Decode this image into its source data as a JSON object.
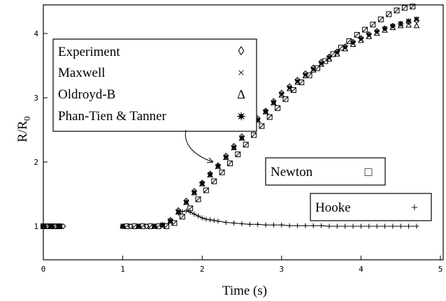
{
  "chart_data": {
    "type": "scatter",
    "xlabel": "Time (s)",
    "ylabel_main": "R/R",
    "ylabel_sub": "0",
    "xlim": [
      0,
      5
    ],
    "ylim": [
      0.6,
      4.5
    ],
    "x_ticks": [
      "0",
      "1",
      "2",
      "3",
      "4",
      "5"
    ],
    "y_ticks": [
      "1",
      "2",
      "3",
      "4"
    ],
    "grid": false,
    "legend_main": [
      {
        "label": "Experiment",
        "symbol": "◊"
      },
      {
        "label": "Maxwell",
        "symbol": "×"
      },
      {
        "label": "Oldroyd-B",
        "symbol": "Δ"
      },
      {
        "label": "Phan-Tien & Tanner",
        "symbol": "✷"
      }
    ],
    "legend_newton": {
      "label": "Newton",
      "symbol": "□"
    },
    "legend_hooke": {
      "label": "Hooke",
      "symbol": "+"
    },
    "series": [
      {
        "name": "Experiment",
        "marker": "diamond",
        "x": [
          0.0,
          0.05,
          0.1,
          0.15,
          0.2,
          0.25,
          1.0,
          1.1,
          1.2,
          1.3,
          1.4,
          1.5,
          1.6,
          1.7,
          1.8,
          1.9,
          2.0,
          2.1,
          2.2,
          2.3,
          2.4,
          2.5,
          2.6,
          2.7,
          2.8,
          2.9,
          3.0,
          3.1,
          3.2,
          3.3,
          3.4,
          3.5,
          3.6,
          3.7,
          3.8,
          3.9,
          4.0,
          4.1,
          4.2,
          4.3,
          4.4,
          4.5,
          4.6,
          4.7
        ],
        "y": [
          1.0,
          1.0,
          1.0,
          1.0,
          1.0,
          1.0,
          1.0,
          1.0,
          1.0,
          1.0,
          1.0,
          1.02,
          1.1,
          1.25,
          1.4,
          1.55,
          1.68,
          1.82,
          1.95,
          2.1,
          2.25,
          2.4,
          2.55,
          2.68,
          2.8,
          2.95,
          3.08,
          3.18,
          3.28,
          3.38,
          3.47,
          3.56,
          3.64,
          3.72,
          3.8,
          3.87,
          3.93,
          3.99,
          4.04,
          4.08,
          4.12,
          4.15,
          4.18,
          4.2
        ]
      },
      {
        "name": "Maxwell",
        "marker": "cross",
        "x": [
          0.0,
          0.1,
          0.2,
          1.0,
          1.2,
          1.4,
          1.5,
          1.6,
          1.7,
          1.8,
          1.9,
          2.0,
          2.1,
          2.2,
          2.3,
          2.4,
          2.5,
          2.6,
          2.7,
          2.8,
          2.9,
          3.0,
          3.1,
          3.2,
          3.3,
          3.4,
          3.5,
          3.6,
          3.7,
          3.8,
          3.9,
          4.0,
          4.1,
          4.2,
          4.3,
          4.4,
          4.5,
          4.6,
          4.7
        ],
        "y": [
          1.0,
          1.0,
          1.0,
          1.0,
          1.0,
          1.0,
          1.02,
          1.08,
          1.22,
          1.37,
          1.52,
          1.66,
          1.8,
          1.93,
          2.07,
          2.22,
          2.37,
          2.52,
          2.65,
          2.78,
          2.92,
          3.05,
          3.15,
          3.25,
          3.35,
          3.44,
          3.53,
          3.62,
          3.7,
          3.78,
          3.85,
          3.91,
          3.97,
          4.02,
          4.07,
          4.11,
          4.15,
          4.19,
          4.22
        ]
      },
      {
        "name": "Oldroyd-B",
        "marker": "triangle",
        "x": [
          0.0,
          0.1,
          0.2,
          1.0,
          1.2,
          1.4,
          1.5,
          1.6,
          1.7,
          1.8,
          1.9,
          2.0,
          2.1,
          2.2,
          2.3,
          2.4,
          2.5,
          2.6,
          2.7,
          2.8,
          2.9,
          3.0,
          3.1,
          3.2,
          3.3,
          3.4,
          3.5,
          3.6,
          3.7,
          3.8,
          3.9,
          4.0,
          4.1,
          4.2,
          4.3,
          4.4,
          4.5,
          4.6,
          4.7
        ],
        "y": [
          1.0,
          1.0,
          1.0,
          1.0,
          1.0,
          1.0,
          1.02,
          1.08,
          1.22,
          1.37,
          1.52,
          1.66,
          1.8,
          1.93,
          2.07,
          2.22,
          2.37,
          2.52,
          2.65,
          2.78,
          2.92,
          3.04,
          3.14,
          3.24,
          3.34,
          3.43,
          3.52,
          3.6,
          3.68,
          3.76,
          3.83,
          3.89,
          3.95,
          4.0,
          4.05,
          4.09,
          4.12,
          4.13,
          4.12
        ]
      },
      {
        "name": "Phan-Tien & Tanner",
        "marker": "star",
        "x": [
          0.0,
          0.1,
          0.2,
          1.0,
          1.2,
          1.4,
          1.5,
          1.6,
          1.7,
          1.8,
          1.9,
          2.0,
          2.1,
          2.2,
          2.3,
          2.4,
          2.5,
          2.6,
          2.7,
          2.8,
          2.9,
          3.0,
          3.1,
          3.2,
          3.3,
          3.4,
          3.5,
          3.6,
          3.7,
          3.8,
          3.9,
          4.0,
          4.1,
          4.2,
          4.3,
          4.4,
          4.5,
          4.6,
          4.7
        ],
        "y": [
          1.0,
          1.0,
          1.0,
          1.0,
          1.0,
          1.0,
          1.02,
          1.08,
          1.23,
          1.38,
          1.53,
          1.67,
          1.81,
          1.94,
          2.08,
          2.23,
          2.38,
          2.53,
          2.66,
          2.79,
          2.93,
          3.06,
          3.16,
          3.26,
          3.36,
          3.45,
          3.54,
          3.63,
          3.71,
          3.79,
          3.86,
          3.92,
          3.98,
          4.03,
          4.08,
          4.12,
          4.16,
          4.2,
          4.23
        ]
      },
      {
        "name": "Newton",
        "marker": "square",
        "x": [
          0.0,
          0.05,
          0.1,
          0.15,
          0.2,
          1.05,
          1.15,
          1.25,
          1.35,
          1.45,
          1.55,
          1.65,
          1.75,
          1.85,
          1.95,
          2.05,
          2.15,
          2.25,
          2.35,
          2.45,
          2.55,
          2.65,
          2.75,
          2.85,
          2.95,
          3.05,
          3.15,
          3.25,
          3.35,
          3.45,
          3.55,
          3.65,
          3.75,
          3.85,
          3.95,
          4.05,
          4.15,
          4.25,
          4.35,
          4.45,
          4.55,
          4.65
        ],
        "y": [
          1.0,
          1.0,
          1.0,
          1.0,
          1.0,
          1.0,
          1.0,
          1.0,
          1.0,
          1.0,
          1.0,
          1.05,
          1.15,
          1.28,
          1.42,
          1.56,
          1.7,
          1.84,
          1.98,
          2.12,
          2.27,
          2.42,
          2.56,
          2.7,
          2.84,
          2.98,
          3.12,
          3.24,
          3.35,
          3.46,
          3.57,
          3.68,
          3.78,
          3.88,
          3.98,
          4.06,
          4.14,
          4.22,
          4.3,
          4.36,
          4.4,
          4.42
        ]
      },
      {
        "name": "Hooke",
        "marker": "plus",
        "x": [
          1.7,
          1.75,
          1.8,
          1.85,
          1.9,
          1.95,
          2.0,
          2.05,
          2.1,
          2.15,
          2.2,
          2.3,
          2.4,
          2.5,
          2.6,
          2.7,
          2.8,
          2.9,
          3.0,
          3.1,
          3.2,
          3.3,
          3.4,
          3.5,
          3.6,
          3.7,
          3.8,
          3.9,
          4.0,
          4.1,
          4.2,
          4.3,
          4.4,
          4.5,
          4.6,
          4.7
        ],
        "y": [
          1.2,
          1.23,
          1.24,
          1.22,
          1.19,
          1.16,
          1.13,
          1.11,
          1.1,
          1.09,
          1.08,
          1.06,
          1.05,
          1.04,
          1.03,
          1.03,
          1.02,
          1.02,
          1.02,
          1.01,
          1.01,
          1.01,
          1.01,
          1.01,
          1.0,
          1.0,
          1.0,
          1.0,
          1.0,
          1.0,
          1.0,
          1.0,
          1.0,
          1.0,
          1.0,
          1.0
        ]
      }
    ]
  }
}
